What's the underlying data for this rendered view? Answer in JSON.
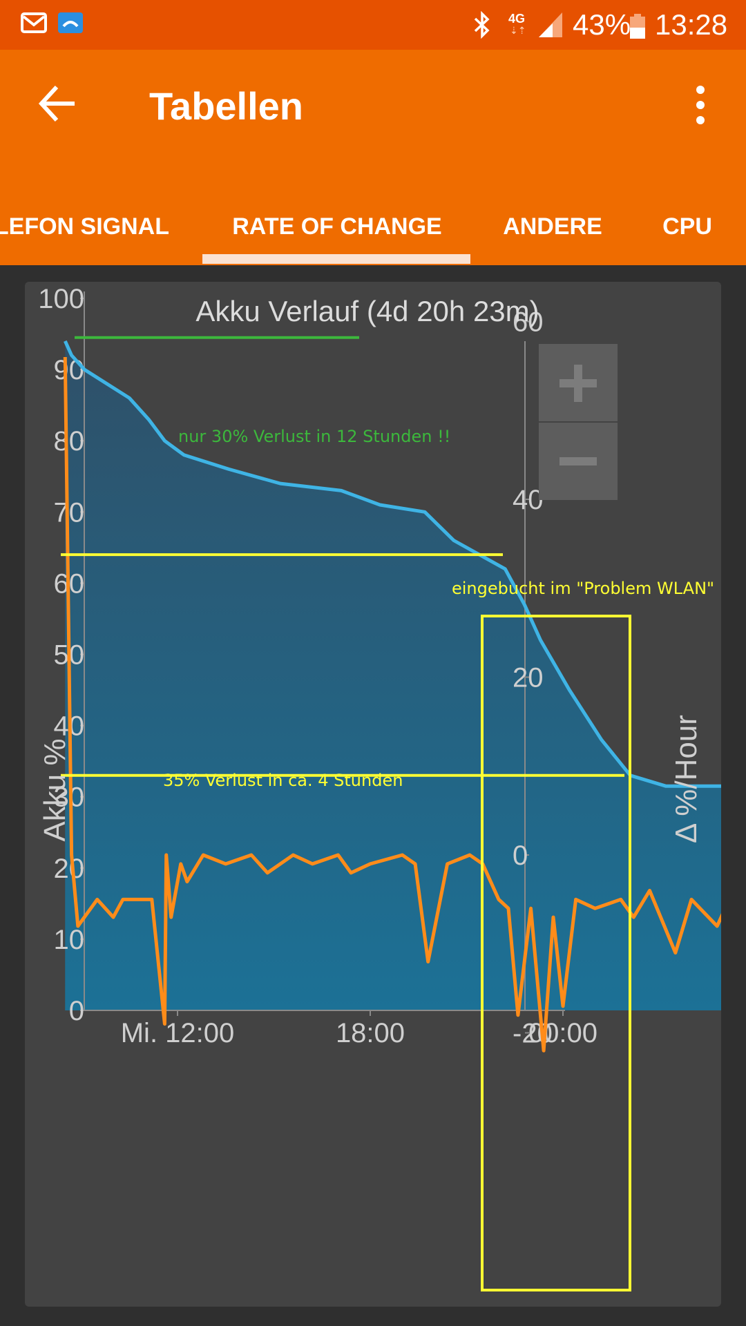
{
  "status_bar": {
    "icons": [
      "mail-icon",
      "app-notification-icon",
      "bluetooth-icon",
      "signal-icon",
      "battery-icon"
    ],
    "network_type": "4G",
    "battery_percent": "43%",
    "time": "13:28",
    "color": "#e65100"
  },
  "app_bar": {
    "title": "Tabellen",
    "back_icon": "arrow-left-icon",
    "menu_icon": "more-vert-icon",
    "color": "#ef6c00"
  },
  "tabs": [
    {
      "label": "LEFON SIGNAL",
      "active": false
    },
    {
      "label": "RATE OF CHANGE",
      "active": true
    },
    {
      "label": "ANDERE",
      "active": false
    },
    {
      "label": "CPU",
      "active": false
    }
  ],
  "zoom": {
    "in_icon": "plus-icon",
    "out_icon": "minus-icon"
  },
  "chart_data": {
    "type": "line",
    "title": "Akku Verlauf (4d 20h 23m)",
    "ylabel": "Akku %",
    "y2label": "Δ %/Hour",
    "ylim": [
      0,
      100
    ],
    "y2lim": [
      -20,
      80
    ],
    "yticks": [
      "0",
      "10",
      "20",
      "30",
      "40",
      "50",
      "60",
      "70",
      "80",
      "90",
      "100"
    ],
    "y2ticks": [
      "-20",
      "0",
      "20",
      "40",
      "60"
    ],
    "xticks": [
      "Mi. 12:00",
      "18:00",
      "00:00"
    ],
    "x_unit": "hours since Mi. 12:00",
    "series": [
      {
        "name": "Akku %",
        "axis": "left",
        "color": "#3fb4e5",
        "x": [
          -3.5,
          -3.3,
          -2.9,
          -1.5,
          -0.9,
          -0.4,
          0.2,
          1.6,
          3.2,
          5.1,
          6.3,
          7.7,
          8.6,
          9.4,
          10.2,
          10.8,
          11.3,
          12.2,
          13.2,
          14.1,
          15.2,
          16.5,
          17.8
        ],
        "values": [
          94,
          92,
          90,
          86,
          83,
          80,
          78,
          76,
          74,
          73,
          71,
          70,
          66,
          64,
          62,
          57,
          52,
          45,
          38,
          33,
          31.5,
          31.5,
          31.5
        ]
      },
      {
        "name": "Δ %/Hour",
        "axis": "right",
        "color": "#ff8c1a",
        "x": [
          -3.5,
          -3.3,
          -3.1,
          -2.5,
          -2.0,
          -1.7,
          -0.8,
          -0.4,
          -0.35,
          -0.2,
          0.1,
          0.3,
          0.8,
          1.5,
          2.3,
          2.8,
          3.6,
          4.2,
          5.0,
          5.4,
          6.0,
          7.0,
          7.4,
          7.8,
          8.4,
          9.1,
          9.5,
          10.0,
          10.3,
          10.6,
          11.0,
          11.4,
          11.7,
          12.0,
          12.4,
          13.0,
          13.8,
          14.2,
          14.7,
          15.5,
          16.0,
          16.8,
          17.8
        ],
        "values": [
          56,
          0,
          -8,
          -5,
          -7,
          -5,
          -5,
          -19,
          0,
          -7,
          -1,
          -3,
          0,
          -1,
          0,
          -2,
          0,
          -1,
          0,
          -2,
          -1,
          0,
          -1,
          -12,
          -1,
          0,
          -1,
          -5,
          -6,
          -18,
          -6,
          -22,
          -7,
          -17,
          -5,
          -6,
          -5,
          -7,
          -4,
          -11,
          -5,
          -8,
          0
        ]
      }
    ],
    "annotations": [
      {
        "text": "nur 30% Verlust in 12 Stunden !!",
        "color": "#3cb83c"
      },
      {
        "text": "eingebucht im \"Problem WLAN\"",
        "color": "#ffff33"
      },
      {
        "text": "35% Verlust in ca. 4 Stunden",
        "color": "#ffff33"
      }
    ]
  }
}
